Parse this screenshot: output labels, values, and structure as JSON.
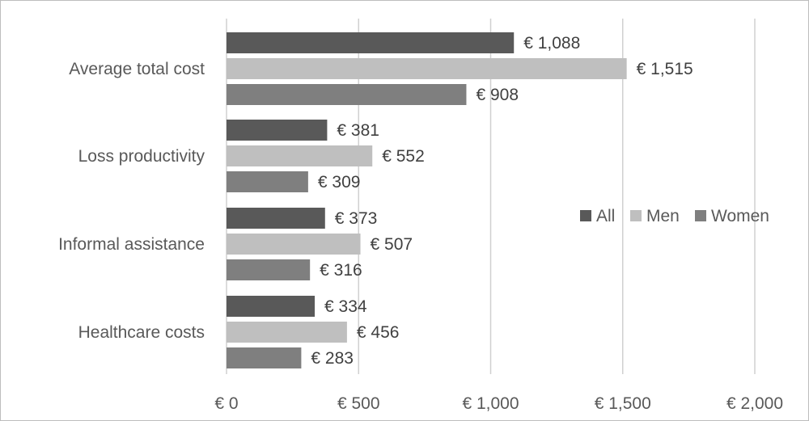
{
  "chart_data": {
    "type": "bar",
    "orientation": "horizontal",
    "categories": [
      "Average total cost",
      "Loss productivity",
      "Informal assistance",
      "Healthcare costs"
    ],
    "series": [
      {
        "name": "All",
        "color": "#595959",
        "values": [
          1088,
          381,
          373,
          334
        ],
        "labels": [
          "€ 1,088",
          "€ 381",
          "€ 373",
          "€ 334"
        ]
      },
      {
        "name": "Men",
        "color": "#bfbfbf",
        "values": [
          1515,
          552,
          507,
          456
        ],
        "labels": [
          "€ 1,515",
          "€ 552",
          "€ 507",
          "€ 456"
        ]
      },
      {
        "name": "Women",
        "color": "#7f7f7f",
        "values": [
          908,
          309,
          316,
          283
        ],
        "labels": [
          "€ 908",
          "€ 309",
          "€ 316",
          "€ 283"
        ]
      }
    ],
    "xlim": [
      0,
      2000
    ],
    "xticks": [
      0,
      500,
      1000,
      1500,
      2000
    ],
    "xtick_labels": [
      "€ 0",
      "€ 500",
      "€ 1,000",
      "€ 1,500",
      "€ 2,000"
    ],
    "grid": "vertical",
    "legend_position": "right"
  }
}
